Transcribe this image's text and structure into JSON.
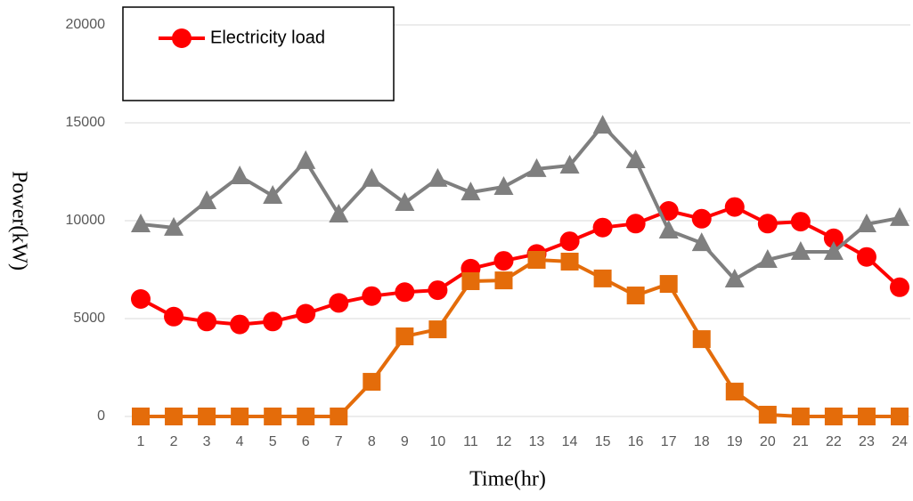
{
  "chart_data": {
    "type": "line",
    "x_label": "Time(hr)",
    "y_label": "Power(kW)",
    "categories": [
      "1",
      "2",
      "3",
      "4",
      "5",
      "6",
      "7",
      "8",
      "9",
      "10",
      "11",
      "12",
      "13",
      "14",
      "15",
      "16",
      "17",
      "18",
      "19",
      "20",
      "21",
      "22",
      "23",
      "24"
    ],
    "ylim": [
      0,
      20000
    ],
    "yticks": [
      0,
      5000,
      10000,
      15000,
      20000
    ],
    "grid": true,
    "legend": "top-left",
    "series": [
      {
        "name": "Electricity load",
        "color": "#ff0000",
        "marker": "circle",
        "values": [
          6000,
          5100,
          4850,
          4700,
          4850,
          5250,
          5800,
          6150,
          6350,
          6450,
          7550,
          7950,
          8300,
          8950,
          9650,
          9850,
          10500,
          10100,
          10700,
          9850,
          9950,
          9100,
          8150,
          6600
        ]
      },
      {
        "color": "#7f7f7f",
        "marker": "triangle",
        "values": [
          9820,
          9640,
          11000,
          12270,
          11270,
          13050,
          10320,
          12140,
          10910,
          12140,
          11450,
          11730,
          12640,
          12820,
          14860,
          13090,
          9500,
          8860,
          7000,
          8000,
          8410,
          8410,
          9820,
          10140
        ]
      },
      {
        "color": "#e46c0a",
        "marker": "square",
        "values": [
          0,
          0,
          0,
          0,
          0,
          0,
          0,
          1770,
          4090,
          4450,
          6910,
          6950,
          8000,
          7910,
          7050,
          6180,
          6770,
          3950,
          1270,
          90,
          0,
          0,
          0,
          0
        ]
      }
    ]
  }
}
